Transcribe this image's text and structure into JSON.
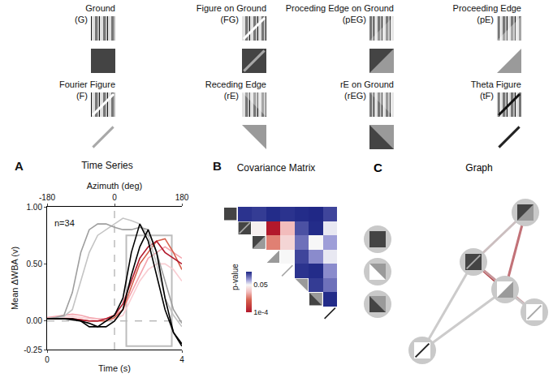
{
  "stimuli": [
    {
      "code": "G",
      "label": "Ground",
      "abbr": "(G)"
    },
    {
      "code": "FG",
      "label": "Figure on Ground",
      "abbr": "(FG)"
    },
    {
      "code": "pEG",
      "label": "Proceding Edge on Ground",
      "abbr": "(pEG)"
    },
    {
      "code": "pE",
      "label": "Proceeding Edge",
      "abbr": "(pE)"
    },
    {
      "code": "F",
      "label": "Fourier Figure",
      "abbr": "(F)"
    },
    {
      "code": "rE",
      "label": "Receding Edge",
      "abbr": "(rE)"
    },
    {
      "code": "rEG",
      "label": "rE on Ground",
      "abbr": "(rEG)"
    },
    {
      "code": "tF",
      "label": "Theta Figure",
      "abbr": "(tF)"
    }
  ],
  "chart_data": [
    {
      "type": "line",
      "panel": "A",
      "title": "Time Series",
      "x": [
        0,
        0.25,
        0.5,
        0.75,
        1,
        1.25,
        1.5,
        1.75,
        2,
        2.25,
        2.5,
        2.75,
        3,
        3.25,
        3.5,
        3.75,
        4
      ],
      "xlabel": "Time (s)",
      "xlim": [
        0,
        4
      ],
      "xticks": [
        0,
        4
      ],
      "x2label": "Azimuth (deg)",
      "x2lim": [
        -180,
        180
      ],
      "x2ticks": [
        -180,
        0,
        180
      ],
      "ylabel": "Mean ΔWBA (v)",
      "ylim": [
        -0.25,
        1
      ],
      "yticks": [
        -0.25,
        {
          "value": 0,
          "label": "0.00"
        },
        {
          "value": 0.5,
          "label": "0.50"
        },
        {
          "value": 1,
          "label": "1.00"
        }
      ],
      "grid": false,
      "annotations": [
        {
          "text": "n=34"
        }
      ],
      "vline_x2": 0,
      "hline_y": 0,
      "window": {
        "x": [
          2.35,
          3.7
        ],
        "y": [
          -0.22,
          0.75
        ]
      },
      "series": [
        {
          "color": "#f9cdd2",
          "values": [
            0.02,
            0.02,
            0.03,
            0.04,
            0.03,
            0.02,
            0,
            0,
            0.02,
            0.05,
            0.2,
            0.35,
            0.45,
            0.5,
            0.5,
            0.45,
            0.35
          ]
        },
        {
          "color": "#f4a5ae",
          "values": [
            0.03,
            0.04,
            0.05,
            0.06,
            0.05,
            0.03,
            0.02,
            0.02,
            0.05,
            0.1,
            0.25,
            0.4,
            0.55,
            0.6,
            0.65,
            0.6,
            0.55
          ]
        },
        {
          "color": "#d6604d",
          "values": [
            0.02,
            0.02,
            0.02,
            0.02,
            0.01,
            0,
            0,
            0,
            0.03,
            0.1,
            0.3,
            0.5,
            0.6,
            0.7,
            0.72,
            0.6,
            0.45
          ]
        },
        {
          "color": "#b2182b",
          "values": [
            0.02,
            0.02,
            0.02,
            0.02,
            0.01,
            0,
            0,
            0.02,
            0.05,
            0.15,
            0.35,
            0.55,
            0.65,
            0.7,
            0.6,
            0.55,
            0.5
          ]
        },
        {
          "color": "#c4c4c4",
          "values": [
            0.02,
            0.03,
            0.04,
            0.1,
            0.35,
            0.6,
            0.75,
            0.8,
            0.85,
            0.9,
            0.88,
            0.85,
            0.75,
            0.5,
            0.2,
            0.05,
            -0.05
          ]
        },
        {
          "color": "#9e9e9e",
          "values": [
            0.02,
            0.03,
            0.05,
            0.25,
            0.6,
            0.8,
            0.85,
            0.85,
            0.82,
            0.8,
            0.8,
            0.82,
            0.8,
            0.6,
            0.35,
            0.1,
            -0.02
          ]
        },
        {
          "color": "#000000",
          "values": [
            0.02,
            0.02,
            0.02,
            0.02,
            0,
            -0.05,
            -0.05,
            0,
            0.05,
            0.2,
            0.6,
            0.85,
            0.7,
            0.4,
            0.1,
            -0.1,
            -0.2
          ]
        },
        {
          "color": "#000000",
          "values": [
            0.02,
            0.02,
            0.02,
            0.01,
            0,
            -0.02,
            -0.05,
            -0.05,
            0,
            0.1,
            0.4,
            0.65,
            0.8,
            0.6,
            0.2,
            -0.1,
            -0.22
          ]
        }
      ]
    },
    {
      "type": "heatmap",
      "panel": "B",
      "title": "Covariance Matrix",
      "categories": [
        "G",
        "FG",
        "pEG",
        "pE",
        "F",
        "rE",
        "rEG",
        "tF"
      ],
      "tick_labels": false,
      "log": true,
      "cells": [
        [
          null,
          0.8,
          0.7,
          0.9,
          0.8,
          0.9,
          0.95,
          0.6
        ],
        [
          null,
          null,
          0.04,
          0.0001,
          0.01,
          0.5,
          0.9,
          0.06
        ],
        [
          null,
          null,
          null,
          0.003,
          0.02,
          0.3,
          0.05,
          0.15
        ],
        [
          null,
          null,
          null,
          null,
          0.05,
          0.6,
          0.2,
          0.06
        ],
        [
          null,
          null,
          null,
          null,
          null,
          0.8,
          0.9,
          0.2
        ],
        [
          null,
          null,
          null,
          null,
          null,
          null,
          0.7,
          0.3
        ],
        [
          null,
          null,
          null,
          null,
          null,
          null,
          null,
          0.9
        ],
        [
          null,
          null,
          null,
          null,
          null,
          null,
          null,
          null
        ]
      ],
      "colorbar": {
        "title": "p-value",
        "range": [
          0.0001,
          1
        ],
        "ticks": [
          {
            "value": 0.0001,
            "label": "1e-4"
          },
          0.05
        ]
      }
    }
  ],
  "graph": {
    "panel": "C",
    "title": "Graph",
    "nodes": [
      "G",
      "rE",
      "rEG",
      "pEG",
      "FG",
      "pE",
      "F",
      "tF"
    ],
    "edges": [
      {
        "source": "pEG",
        "target": "FG",
        "p": 0.04
      },
      {
        "source": "FG",
        "target": "pE",
        "p": 0.0001
      },
      {
        "source": "pEG",
        "target": "pE",
        "p": 0.003
      },
      {
        "source": "FG",
        "target": "F",
        "p": 0.01
      },
      {
        "source": "pE",
        "target": "F",
        "p": 0.05
      },
      {
        "source": "tF",
        "target": "FG",
        "p": 0.06
      },
      {
        "source": "tF",
        "target": "pE",
        "p": 0.06
      }
    ]
  }
}
